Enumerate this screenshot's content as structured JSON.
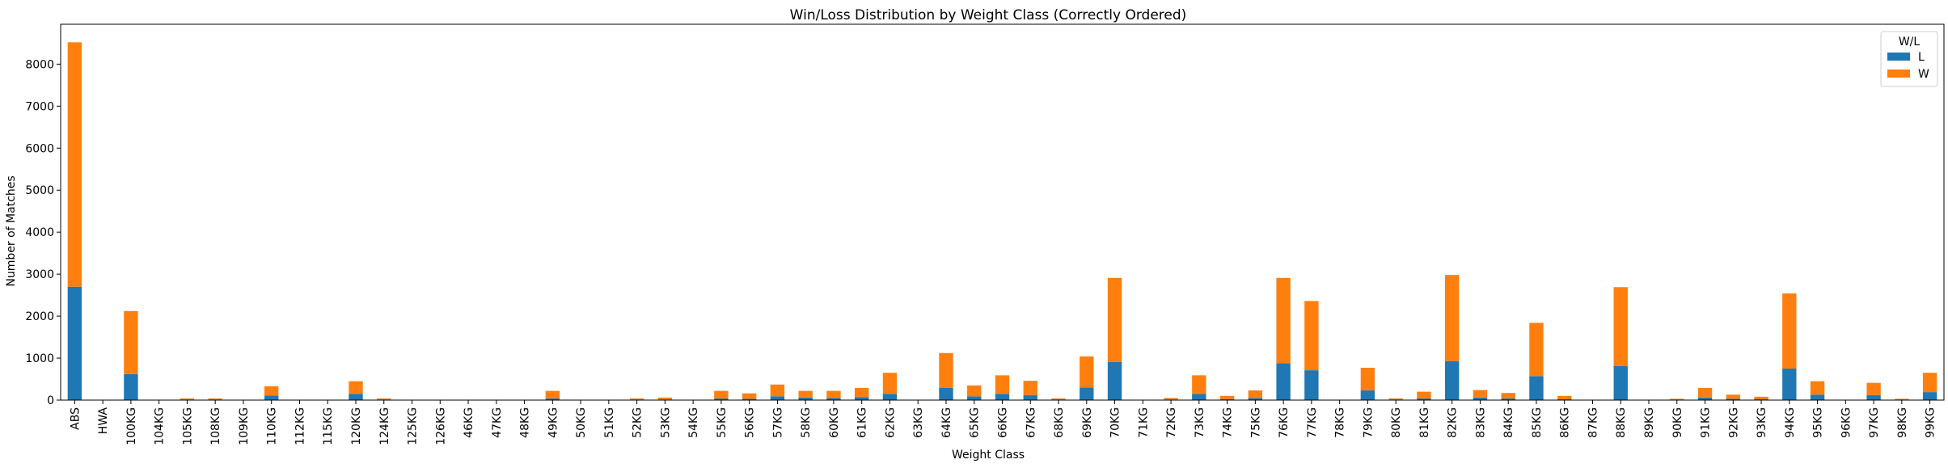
{
  "chart_data": {
    "type": "bar",
    "stacked": true,
    "title": "Win/Loss Distribution by Weight Class (Correctly Ordered)",
    "xlabel": "Weight Class",
    "ylabel": "Number of Matches",
    "ylim": [
      0,
      8950
    ],
    "yticks": [
      0,
      1000,
      2000,
      3000,
      4000,
      5000,
      6000,
      7000,
      8000
    ],
    "legend": {
      "title": "W/L",
      "position": "top-right"
    },
    "categories": [
      "ABS",
      "HWA",
      "100KG",
      "104KG",
      "105KG",
      "108KG",
      "109KG",
      "110KG",
      "112KG",
      "115KG",
      "120KG",
      "124KG",
      "125KG",
      "126KG",
      "46KG",
      "47KG",
      "48KG",
      "49KG",
      "50KG",
      "51KG",
      "52KG",
      "53KG",
      "54KG",
      "55KG",
      "56KG",
      "57KG",
      "58KG",
      "60KG",
      "61KG",
      "62KG",
      "63KG",
      "64KG",
      "65KG",
      "66KG",
      "67KG",
      "68KG",
      "69KG",
      "70KG",
      "71KG",
      "72KG",
      "73KG",
      "74KG",
      "75KG",
      "76KG",
      "77KG",
      "78KG",
      "79KG",
      "80KG",
      "81KG",
      "82KG",
      "83KG",
      "84KG",
      "85KG",
      "86KG",
      "87KG",
      "88KG",
      "89KG",
      "90KG",
      "91KG",
      "92KG",
      "93KG",
      "94KG",
      "95KG",
      "96KG",
      "97KG",
      "98KG",
      "99KG"
    ],
    "series": [
      {
        "name": "L",
        "color": "#1f77b4",
        "values": [
          2700,
          0,
          620,
          0,
          10,
          10,
          0,
          110,
          0,
          0,
          150,
          10,
          0,
          0,
          0,
          0,
          0,
          40,
          0,
          0,
          10,
          15,
          0,
          40,
          30,
          90,
          60,
          50,
          70,
          150,
          0,
          290,
          90,
          150,
          120,
          10,
          300,
          910,
          0,
          10,
          150,
          25,
          50,
          880,
          710,
          0,
          230,
          10,
          40,
          930,
          60,
          40,
          570,
          20,
          0,
          810,
          0,
          10,
          60,
          30,
          20,
          750,
          130,
          0,
          120,
          10,
          190
        ]
      },
      {
        "name": "W",
        "color": "#ff7f0e",
        "values": [
          5820,
          0,
          1500,
          0,
          30,
          30,
          0,
          220,
          0,
          0,
          300,
          30,
          0,
          0,
          0,
          0,
          0,
          180,
          0,
          0,
          30,
          45,
          0,
          180,
          130,
          280,
          160,
          170,
          220,
          500,
          0,
          830,
          260,
          440,
          340,
          30,
          740,
          2000,
          0,
          40,
          440,
          75,
          180,
          2030,
          1650,
          0,
          540,
          30,
          160,
          2050,
          180,
          130,
          1270,
          80,
          0,
          1880,
          0,
          20,
          230,
          100,
          60,
          1790,
          320,
          0,
          290,
          20,
          460
        ]
      }
    ]
  }
}
